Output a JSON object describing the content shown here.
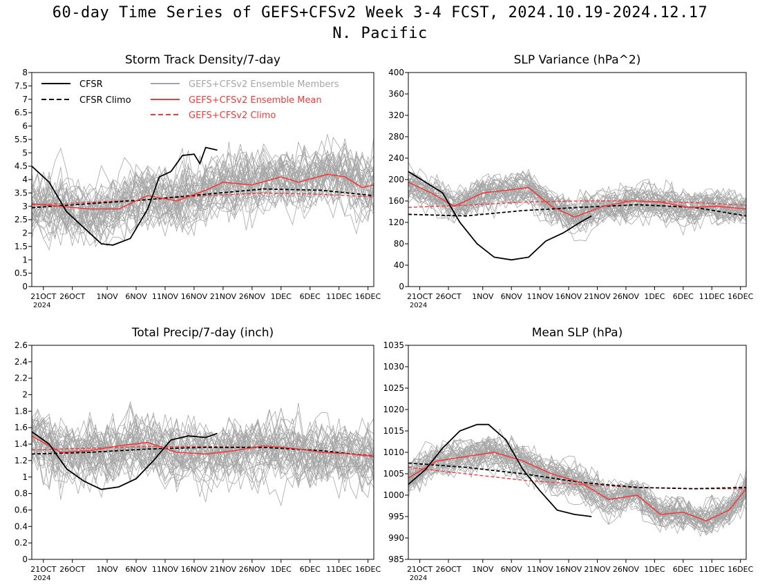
{
  "title": {
    "line1": "60-day Time Series of GEFS+CFSv2 Week 3-4 FCST, 2024.10.19-2024.12.17",
    "line2": "N. Pacific"
  },
  "colors": {
    "cfsr": "#000000",
    "cfsr_climo": "#000000",
    "members": "#a6a6a6",
    "ens_mean": "#f03c3c",
    "ens_climo": "#f03c3c"
  },
  "legend": {
    "cfsr": "CFSR",
    "cfsr_climo": "CFSR Climo",
    "members": "GEFS+CFSv2 Ensemble Members",
    "ens_mean": "GEFS+CFSv2 Ensemble Mean",
    "ens_climo": "GEFS+CFSv2 Climo",
    "placement": "top-left"
  },
  "x_axis": {
    "range": [
      "2024-10-19",
      "2024-12-17"
    ],
    "ticks": [
      "21OCT",
      "26OCT",
      "1NOV",
      "6NOV",
      "11NOV",
      "16NOV",
      "21NOV",
      "26NOV",
      "1DEC",
      "6DEC",
      "11DEC",
      "16DEC"
    ],
    "year_label": "2024"
  },
  "chart_data": [
    {
      "type": "line",
      "title": "Storm Track Density/7-day",
      "ylim": [
        0,
        8
      ],
      "yticks": [
        "0",
        "0.5",
        "1",
        "1.5",
        "2",
        "2.5",
        "3",
        "3.5",
        "4",
        "4.5",
        "5",
        "5.5",
        "6",
        "6.5",
        "7",
        "7.5",
        "8"
      ],
      "ensemble_members": 40,
      "series": [
        {
          "name": "CFSR",
          "style": "solid-black",
          "x": [
            "2024-10-19",
            "2024-10-22",
            "2024-10-25",
            "2024-10-28",
            "2024-10-31",
            "2024-11-02",
            "2024-11-05",
            "2024-11-08",
            "2024-11-10",
            "2024-11-12",
            "2024-11-14",
            "2024-11-16",
            "2024-11-17",
            "2024-11-18",
            "2024-11-20"
          ],
          "values": [
            4.5,
            3.9,
            2.8,
            2.2,
            1.6,
            1.55,
            1.8,
            2.9,
            4.1,
            4.3,
            4.9,
            4.95,
            4.6,
            5.2,
            5.1
          ]
        },
        {
          "name": "CFSR Climo",
          "style": "dashed-black",
          "x": [
            "2024-10-19",
            "2024-10-29",
            "2024-11-08",
            "2024-11-18",
            "2024-11-28",
            "2024-12-08",
            "2024-12-17"
          ],
          "values": [
            2.95,
            3.1,
            3.25,
            3.45,
            3.65,
            3.6,
            3.4
          ]
        },
        {
          "name": "GEFS+CFSv2 Ensemble Mean",
          "style": "solid-red",
          "x": [
            "2024-10-19",
            "2024-10-24",
            "2024-10-29",
            "2024-11-03",
            "2024-11-08",
            "2024-11-13",
            "2024-11-18",
            "2024-11-21",
            "2024-11-26",
            "2024-12-01",
            "2024-12-04",
            "2024-12-09",
            "2024-12-12",
            "2024-12-15",
            "2024-12-17"
          ],
          "values": [
            3.1,
            3.0,
            2.9,
            2.9,
            3.4,
            3.2,
            3.6,
            3.9,
            3.8,
            4.1,
            3.9,
            4.2,
            4.1,
            3.7,
            3.8
          ]
        },
        {
          "name": "GEFS+CFSv2 Climo",
          "style": "dashed-red",
          "x": [
            "2024-10-19",
            "2024-10-29",
            "2024-11-08",
            "2024-11-18",
            "2024-11-28",
            "2024-12-08",
            "2024-12-17"
          ],
          "values": [
            3.05,
            3.15,
            3.25,
            3.4,
            3.5,
            3.45,
            3.35
          ]
        }
      ]
    },
    {
      "type": "line",
      "title": "SLP Variance (hPa^2)",
      "ylim": [
        0,
        400
      ],
      "yticks": [
        "0",
        "40",
        "80",
        "120",
        "160",
        "200",
        "240",
        "280",
        "320",
        "360",
        "400"
      ],
      "ensemble_members": 40,
      "series": [
        {
          "name": "CFSR",
          "style": "solid-black",
          "x": [
            "2024-10-19",
            "2024-10-22",
            "2024-10-25",
            "2024-10-28",
            "2024-10-31",
            "2024-11-03",
            "2024-11-06",
            "2024-11-09",
            "2024-11-12",
            "2024-11-15",
            "2024-11-18",
            "2024-11-20"
          ],
          "values": [
            215,
            195,
            175,
            120,
            80,
            55,
            50,
            55,
            85,
            100,
            120,
            132
          ]
        },
        {
          "name": "CFSR Climo",
          "style": "dashed-black",
          "x": [
            "2024-10-19",
            "2024-10-29",
            "2024-11-08",
            "2024-11-18",
            "2024-11-28",
            "2024-12-08",
            "2024-12-17"
          ],
          "values": [
            135,
            132,
            142,
            148,
            153,
            148,
            132
          ]
        },
        {
          "name": "GEFS+CFSv2 Ensemble Mean",
          "style": "solid-red",
          "x": [
            "2024-10-19",
            "2024-10-23",
            "2024-10-27",
            "2024-11-01",
            "2024-11-05",
            "2024-11-09",
            "2024-11-13",
            "2024-11-17",
            "2024-11-22",
            "2024-11-27",
            "2024-12-02",
            "2024-12-07",
            "2024-12-12",
            "2024-12-17"
          ],
          "values": [
            195,
            175,
            150,
            175,
            180,
            185,
            150,
            130,
            150,
            160,
            158,
            148,
            150,
            145
          ]
        },
        {
          "name": "GEFS+CFSv2 Climo",
          "style": "dashed-red",
          "x": [
            "2024-10-19",
            "2024-10-29",
            "2024-11-08",
            "2024-11-18",
            "2024-11-28",
            "2024-12-08",
            "2024-12-17"
          ],
          "values": [
            148,
            152,
            158,
            160,
            160,
            157,
            152
          ]
        }
      ]
    },
    {
      "type": "line",
      "title": "Total Precip/7-day (inch)",
      "ylim": [
        0,
        2.6
      ],
      "yticks": [
        "0",
        "0.2",
        "0.4",
        "0.6",
        "0.8",
        "1",
        "1.2",
        "1.4",
        "1.6",
        "1.8",
        "2",
        "2.2",
        "2.4",
        "2.6"
      ],
      "ensemble_members": 40,
      "series": [
        {
          "name": "CFSR",
          "style": "solid-black",
          "x": [
            "2024-10-19",
            "2024-10-22",
            "2024-10-25",
            "2024-10-28",
            "2024-10-31",
            "2024-11-03",
            "2024-11-06",
            "2024-11-09",
            "2024-11-12",
            "2024-11-15",
            "2024-11-18",
            "2024-11-20"
          ],
          "values": [
            1.55,
            1.4,
            1.1,
            0.95,
            0.85,
            0.88,
            0.98,
            1.2,
            1.45,
            1.5,
            1.48,
            1.53
          ]
        },
        {
          "name": "CFSR Climo",
          "style": "dashed-black",
          "x": [
            "2024-10-19",
            "2024-10-29",
            "2024-11-08",
            "2024-11-18",
            "2024-11-28",
            "2024-12-08",
            "2024-12-17"
          ],
          "values": [
            1.28,
            1.3,
            1.34,
            1.36,
            1.36,
            1.32,
            1.25
          ]
        },
        {
          "name": "GEFS+CFSv2 Ensemble Mean",
          "style": "solid-red",
          "x": [
            "2024-10-19",
            "2024-10-24",
            "2024-10-29",
            "2024-11-03",
            "2024-11-08",
            "2024-11-13",
            "2024-11-18",
            "2024-11-23",
            "2024-11-28",
            "2024-12-03",
            "2024-12-08",
            "2024-12-13",
            "2024-12-17"
          ],
          "values": [
            1.5,
            1.3,
            1.32,
            1.38,
            1.42,
            1.3,
            1.28,
            1.32,
            1.38,
            1.35,
            1.3,
            1.28,
            1.25
          ]
        },
        {
          "name": "GEFS+CFSv2 Climo",
          "style": "dashed-red",
          "x": [
            "2024-10-19",
            "2024-10-29",
            "2024-11-08",
            "2024-11-18",
            "2024-11-28",
            "2024-12-08",
            "2024-12-17"
          ],
          "values": [
            1.33,
            1.35,
            1.37,
            1.37,
            1.36,
            1.32,
            1.26
          ]
        }
      ]
    },
    {
      "type": "line",
      "title": "Mean SLP (hPa)",
      "ylim": [
        985,
        1035
      ],
      "yticks": [
        "985",
        "990",
        "995",
        "1000",
        "1005",
        "1010",
        "1015",
        "1020",
        "1025",
        "1030",
        "1035"
      ],
      "ensemble_members": 40,
      "series": [
        {
          "name": "CFSR",
          "style": "solid-black",
          "x": [
            "2024-10-19",
            "2024-10-22",
            "2024-10-25",
            "2024-10-28",
            "2024-10-31",
            "2024-11-02",
            "2024-11-05",
            "2024-11-08",
            "2024-11-11",
            "2024-11-14",
            "2024-11-17",
            "2024-11-20"
          ],
          "values": [
            1002.5,
            1006,
            1011,
            1015,
            1016.5,
            1016.5,
            1013,
            1006,
            1001,
            996.5,
            995.5,
            995
          ]
        },
        {
          "name": "CFSR Climo",
          "style": "dashed-black",
          "x": [
            "2024-10-19",
            "2024-10-29",
            "2024-11-08",
            "2024-11-18",
            "2024-11-28",
            "2024-12-08",
            "2024-12-17"
          ],
          "values": [
            1007.5,
            1006.5,
            1005,
            1003,
            1001.8,
            1001.5,
            1001.8
          ]
        },
        {
          "name": "GEFS+CFSv2 Ensemble Mean",
          "style": "solid-red",
          "x": [
            "2024-10-19",
            "2024-10-24",
            "2024-10-29",
            "2024-11-03",
            "2024-11-08",
            "2024-11-13",
            "2024-11-18",
            "2024-11-23",
            "2024-11-28",
            "2024-12-02",
            "2024-12-06",
            "2024-12-10",
            "2024-12-14",
            "2024-12-17"
          ],
          "values": [
            1004,
            1008,
            1009,
            1010,
            1008,
            1005,
            1003,
            999,
            1000,
            995.5,
            996,
            994,
            996.5,
            1001.5
          ]
        },
        {
          "name": "GEFS+CFSv2 Climo",
          "style": "dashed-red",
          "x": [
            "2024-10-19",
            "2024-10-29",
            "2024-11-08",
            "2024-11-18",
            "2024-11-28",
            "2024-12-08",
            "2024-12-17"
          ],
          "values": [
            1006.5,
            1005,
            1003.5,
            1002.5,
            1001.8,
            1001.5,
            1001.5
          ]
        }
      ]
    }
  ]
}
